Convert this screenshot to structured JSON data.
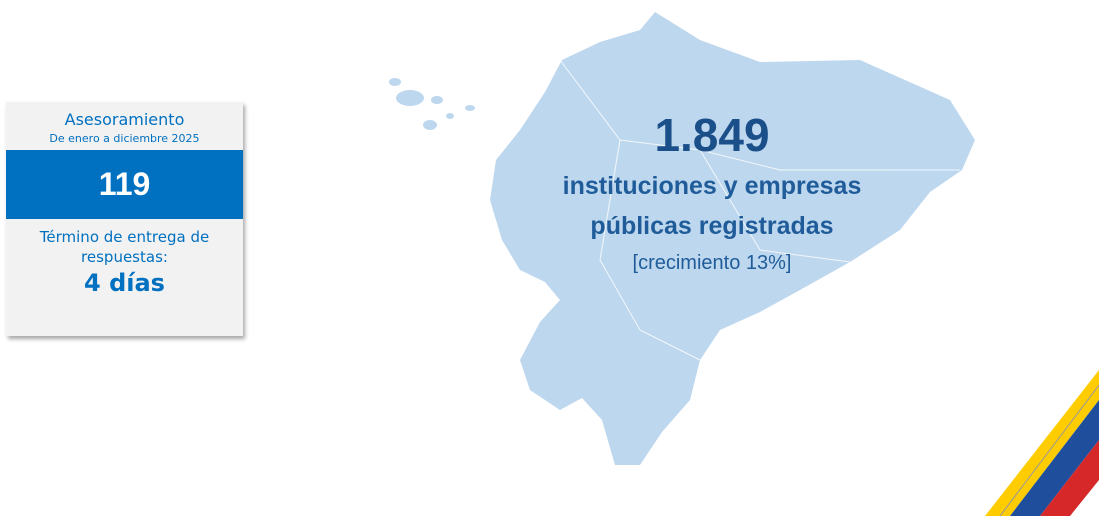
{
  "card": {
    "title": "Asesoramiento",
    "subtitle": "De enero a diciembre 2025",
    "number": "119",
    "term_label_lines": [
      "Término de entrega de",
      "respuestas:"
    ],
    "term_value": "4 días"
  },
  "map": {
    "number": "1.849",
    "description_lines": [
      "instituciones y empresas",
      "públicas registradas"
    ],
    "growth": "[crecimiento 13%]"
  }
}
